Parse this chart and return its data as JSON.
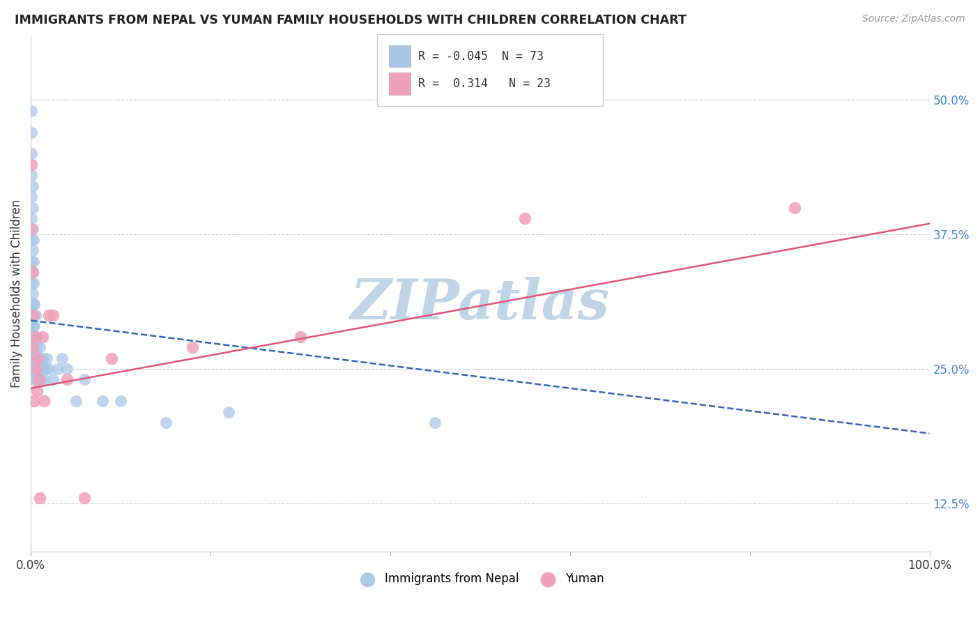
{
  "title": "IMMIGRANTS FROM NEPAL VS YUMAN FAMILY HOUSEHOLDS WITH CHILDREN CORRELATION CHART",
  "source": "Source: ZipAtlas.com",
  "ylabel": "Family Households with Children",
  "xlim": [
    0.0,
    1.0
  ],
  "ylim": [
    0.08,
    0.56
  ],
  "yticks": [
    0.125,
    0.25,
    0.375,
    0.5
  ],
  "ytick_labels": [
    "12.5%",
    "25.0%",
    "37.5%",
    "50.0%"
  ],
  "xticks": [
    0.0,
    0.2,
    0.4,
    0.6,
    0.8,
    1.0
  ],
  "xtick_labels": [
    "0.0%",
    "",
    "",
    "",
    "",
    "100.0%"
  ],
  "legend_r_blue": "-0.045",
  "legend_n_blue": "73",
  "legend_r_pink": "0.314",
  "legend_n_pink": "23",
  "blue_color": "#a8c8e8",
  "pink_color": "#f0a0b8",
  "blue_line_color": "#3366bb",
  "pink_line_color": "#dd5577",
  "watermark": "ZIPatlas",
  "watermark_color": "#c0d4e8",
  "blue_line_x0": 0.0,
  "blue_line_x1": 1.0,
  "blue_line_y0": 0.295,
  "blue_line_y1": 0.19,
  "pink_line_x0": 0.0,
  "pink_line_x1": 1.0,
  "pink_line_y0": 0.232,
  "pink_line_y1": 0.385,
  "blue_scatter_x": [
    0.001,
    0.001,
    0.001,
    0.001,
    0.001,
    0.001,
    0.001,
    0.001,
    0.001,
    0.001,
    0.001,
    0.001,
    0.002,
    0.002,
    0.002,
    0.002,
    0.002,
    0.002,
    0.002,
    0.002,
    0.002,
    0.002,
    0.002,
    0.003,
    0.003,
    0.003,
    0.003,
    0.003,
    0.003,
    0.003,
    0.003,
    0.003,
    0.004,
    0.004,
    0.004,
    0.004,
    0.004,
    0.005,
    0.005,
    0.005,
    0.005,
    0.006,
    0.006,
    0.006,
    0.007,
    0.007,
    0.007,
    0.008,
    0.008,
    0.009,
    0.009,
    0.01,
    0.01,
    0.011,
    0.011,
    0.012,
    0.013,
    0.014,
    0.015,
    0.016,
    0.018,
    0.02,
    0.025,
    0.03,
    0.035,
    0.04,
    0.05,
    0.06,
    0.08,
    0.1,
    0.15,
    0.22,
    0.45
  ],
  "blue_scatter_y": [
    0.49,
    0.47,
    0.45,
    0.43,
    0.41,
    0.39,
    0.37,
    0.35,
    0.33,
    0.31,
    0.3,
    0.29,
    0.42,
    0.4,
    0.38,
    0.36,
    0.34,
    0.32,
    0.3,
    0.28,
    0.27,
    0.26,
    0.25,
    0.37,
    0.35,
    0.33,
    0.31,
    0.29,
    0.27,
    0.26,
    0.25,
    0.24,
    0.31,
    0.29,
    0.28,
    0.26,
    0.25,
    0.3,
    0.28,
    0.26,
    0.24,
    0.28,
    0.26,
    0.25,
    0.27,
    0.25,
    0.24,
    0.26,
    0.25,
    0.25,
    0.24,
    0.27,
    0.25,
    0.26,
    0.24,
    0.25,
    0.26,
    0.25,
    0.24,
    0.25,
    0.26,
    0.25,
    0.24,
    0.25,
    0.26,
    0.25,
    0.22,
    0.24,
    0.22,
    0.22,
    0.2,
    0.21,
    0.2
  ],
  "pink_scatter_x": [
    0.001,
    0.001,
    0.002,
    0.002,
    0.003,
    0.004,
    0.005,
    0.006,
    0.007,
    0.008,
    0.009,
    0.01,
    0.013,
    0.015,
    0.02,
    0.025,
    0.04,
    0.06,
    0.09,
    0.18,
    0.3,
    0.55,
    0.85
  ],
  "pink_scatter_y": [
    0.44,
    0.38,
    0.34,
    0.27,
    0.3,
    0.22,
    0.28,
    0.25,
    0.23,
    0.26,
    0.24,
    0.13,
    0.28,
    0.22,
    0.3,
    0.3,
    0.24,
    0.13,
    0.26,
    0.27,
    0.28,
    0.39,
    0.4
  ]
}
